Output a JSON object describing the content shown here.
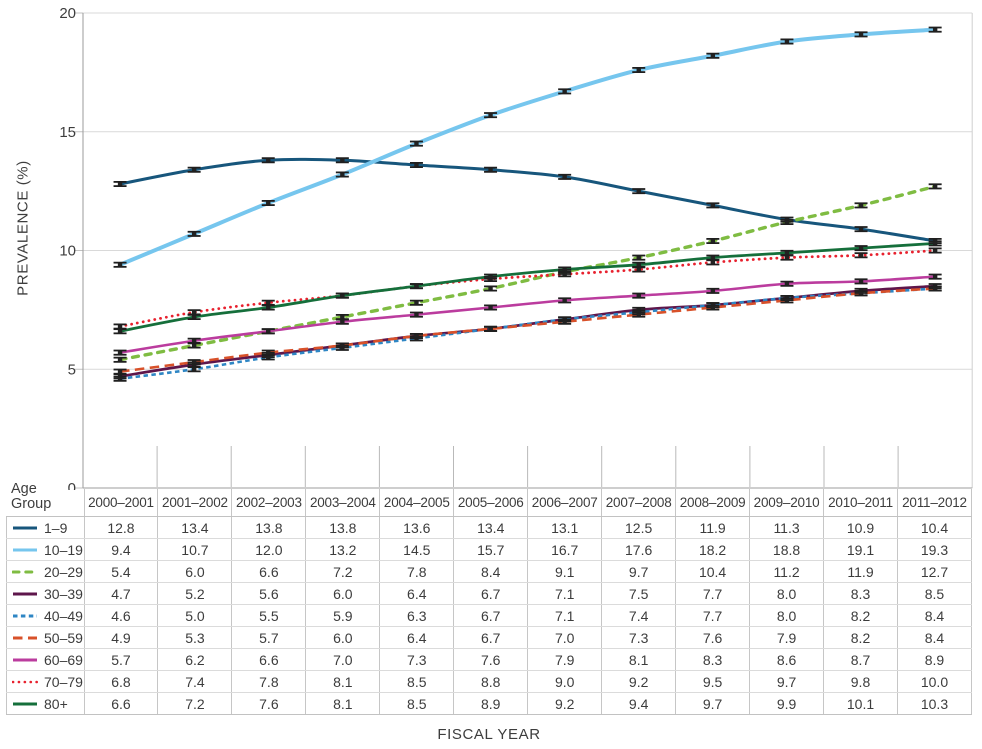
{
  "chart_data": {
    "type": "line",
    "title": "",
    "xlabel": "FISCAL YEAR",
    "ylabel": "PREVALENCE (%)",
    "legend_title": "Age Group",
    "legend_position": "table-below",
    "grid": "horizontal",
    "ylim": [
      0,
      20
    ],
    "yticks": [
      0,
      5,
      10,
      15,
      20
    ],
    "error_bars": true,
    "categories": [
      "2000–2001",
      "2001–2002",
      "2002–2003",
      "2003–2004",
      "2004–2005",
      "2005–2006",
      "2006–2007",
      "2007–2008",
      "2008–2009",
      "2009–2010",
      "2010–2011",
      "2011–2012"
    ],
    "series": [
      {
        "name": "1–9",
        "color": "#17567c",
        "line_style": "solid",
        "stroke_width": 3.0,
        "values": [
          "12.8",
          "13.4",
          "13.8",
          "13.8",
          "13.6",
          "13.4",
          "13.1",
          "12.5",
          "11.9",
          "11.3",
          "10.9",
          "10.4"
        ]
      },
      {
        "name": "10–19",
        "color": "#76c6ee",
        "line_style": "solid",
        "stroke_width": 4.0,
        "values": [
          "9.4",
          "10.7",
          "12.0",
          "13.2",
          "14.5",
          "15.7",
          "16.7",
          "17.6",
          "18.2",
          "18.8",
          "19.1",
          "19.3"
        ]
      },
      {
        "name": "20–29",
        "color": "#7fbc42",
        "line_style": "dash",
        "stroke_width": 3.4,
        "values": [
          "5.4",
          "6.0",
          "6.6",
          "7.2",
          "7.8",
          "8.4",
          "9.1",
          "9.7",
          "10.4",
          "11.2",
          "11.9",
          "12.7"
        ]
      },
      {
        "name": "30–39",
        "color": "#5e164b",
        "line_style": "solid",
        "stroke_width": 2.7,
        "values": [
          "4.7",
          "5.2",
          "5.6",
          "6.0",
          "6.4",
          "6.7",
          "7.1",
          "7.5",
          "7.7",
          "8.0",
          "8.3",
          "8.5"
        ]
      },
      {
        "name": "40–49",
        "color": "#2e86c4",
        "line_style": "short-dash",
        "stroke_width": 2.6,
        "values": [
          "4.6",
          "5.0",
          "5.5",
          "5.9",
          "6.3",
          "6.7",
          "7.1",
          "7.4",
          "7.7",
          "8.0",
          "8.2",
          "8.4"
        ]
      },
      {
        "name": "50–59",
        "color": "#d8512a",
        "line_style": "long-dash",
        "stroke_width": 2.6,
        "values": [
          "4.9",
          "5.3",
          "5.7",
          "6.0",
          "6.4",
          "6.7",
          "7.0",
          "7.3",
          "7.6",
          "7.9",
          "8.2",
          "8.4"
        ]
      },
      {
        "name": "60–69",
        "color": "#bb3c9e",
        "line_style": "solid",
        "stroke_width": 2.6,
        "values": [
          "5.7",
          "6.2",
          "6.6",
          "7.0",
          "7.3",
          "7.6",
          "7.9",
          "8.1",
          "8.3",
          "8.6",
          "8.7",
          "8.9"
        ]
      },
      {
        "name": "70–79",
        "color": "#e8212e",
        "line_style": "dot",
        "stroke_width": 2.8,
        "values": [
          "6.8",
          "7.4",
          "7.8",
          "8.1",
          "8.5",
          "8.8",
          "9.0",
          "9.2",
          "9.5",
          "9.7",
          "9.8",
          "10.0"
        ]
      },
      {
        "name": "80+",
        "color": "#156f3b",
        "line_style": "solid",
        "stroke_width": 2.8,
        "values": [
          "6.6",
          "7.2",
          "7.6",
          "8.1",
          "8.5",
          "8.9",
          "9.2",
          "9.4",
          "9.7",
          "9.9",
          "10.1",
          "10.3"
        ]
      }
    ]
  }
}
